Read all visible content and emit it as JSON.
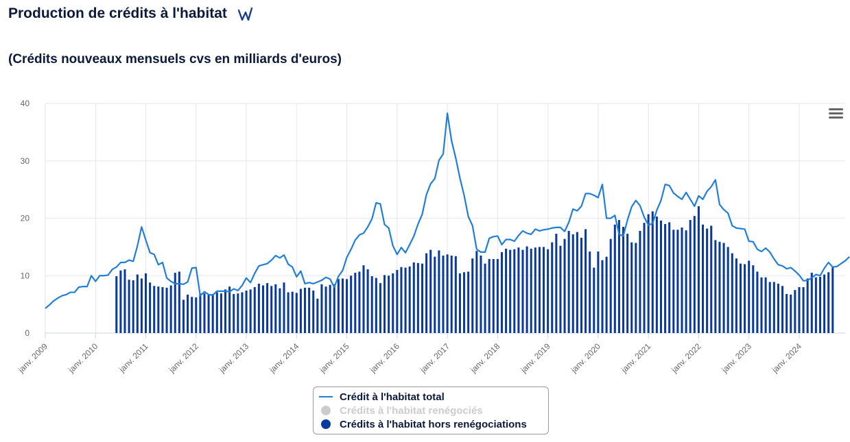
{
  "header": {
    "title": "Production de crédits à l'habitat",
    "subtitle": "(Crédits nouveaux mensuels cvs en milliards d'euros)"
  },
  "chart_data": {
    "type": "line+bar",
    "ylim": [
      0,
      40
    ],
    "yticks": [
      0,
      10,
      20,
      30,
      40
    ],
    "xticks": [
      "janv. 2009",
      "janv. 2010",
      "janv. 2011",
      "janv. 2012",
      "janv. 2013",
      "janv. 2014",
      "janv. 2015",
      "janv. 2016",
      "janv. 2017",
      "janv. 2018",
      "janv. 2019",
      "janv. 2020",
      "janv. 2021",
      "janv. 2022",
      "janv. 2023",
      "janv. 2024"
    ],
    "x_start": "2009-01",
    "x_end": "2024-11",
    "grid": true,
    "legend_position": "bottom-center",
    "colors": {
      "total": "#1f7ed8",
      "renegocies": "#cccccc",
      "hors": "#0a3a9a"
    },
    "series": [
      {
        "name": "Crédit à l'habitat total",
        "type": "line",
        "values": [
          4.3,
          4.9,
          5.6,
          6.1,
          6.5,
          6.7,
          7.1,
          7.1,
          8.0,
          8.1,
          8.1,
          10.0,
          9.0,
          10.0,
          10.0,
          10.1,
          11.1,
          11.5,
          12.3,
          12.3,
          12.7,
          12.5,
          15.2,
          18.5,
          16.2,
          14.0,
          13.7,
          11.9,
          12.3,
          9.6,
          9.0,
          8.6,
          8.6,
          8.5,
          8.9,
          11.3,
          11.4,
          6.5,
          7.2,
          6.7,
          6.6,
          7.3,
          7.3,
          7.3,
          7.2,
          7.7,
          7.4,
          8.3,
          9.6,
          8.8,
          10.4,
          11.7,
          11.9,
          12.1,
          12.7,
          13.5,
          13.1,
          13.6,
          12.0,
          11.5,
          9.8,
          10.8,
          8.6,
          8.8,
          8.6,
          8.9,
          9.2,
          9.7,
          9.4,
          8.0,
          9.9,
          10.9,
          13.2,
          14.6,
          16.2,
          17.1,
          17.4,
          18.5,
          19.9,
          22.7,
          22.5,
          18.9,
          18.3,
          15.2,
          13.7,
          14.9,
          14.0,
          15.4,
          16.9,
          19.0,
          20.7,
          24.1,
          26.0,
          26.9,
          30.1,
          31.2,
          38.3,
          33.5,
          30.5,
          27.0,
          24.0,
          20.3,
          18.7,
          14.6,
          14.1,
          14.1,
          16.5,
          16.8,
          16.9,
          15.4,
          16.3,
          16.3,
          16.0,
          17.0,
          17.8,
          17.4,
          17.2,
          18.1,
          17.8,
          18.0,
          18.1,
          18.3,
          18.4,
          18.4,
          17.7,
          19.3,
          21.6,
          21.3,
          22.1,
          24.3,
          24.3,
          24.0,
          23.6,
          25.9,
          20.0,
          20.0,
          20.5,
          17.2,
          16.9,
          19.7,
          22.0,
          23.1,
          22.2,
          20.2,
          18.8,
          19.1,
          21.4,
          23.1,
          25.9,
          25.7,
          24.4,
          23.8,
          23.3,
          24.5,
          23.3,
          22.1,
          23.9,
          23.3,
          24.7,
          25.5,
          26.7,
          22.4,
          21.5,
          20.9,
          18.7,
          18.3,
          18.2,
          18.1,
          16.0,
          15.9,
          14.6,
          14.2,
          14.8,
          14.1,
          12.9,
          11.9,
          11.7,
          11.2,
          11.4,
          10.8,
          10.1,
          9.1,
          9.2,
          9.6,
          10.2,
          10.0,
          11.3,
          12.3,
          11.5,
          11.6,
          12.1,
          12.6,
          13.3
        ]
      },
      {
        "name": "Crédits à l'habitat renégociés",
        "type": "column",
        "visible": false
      },
      {
        "name": "Crédits à l'habitat hors renégociations",
        "type": "column",
        "start": "2010-06",
        "values": [
          9.9,
          10.9,
          11.1,
          9.3,
          9.2,
          10.2,
          9.5,
          10.4,
          8.8,
          8.2,
          8.1,
          8.0,
          7.9,
          8.3,
          10.5,
          10.7,
          5.8,
          6.7,
          6.3,
          6.2,
          6.9,
          6.9,
          6.8,
          6.8,
          7.1,
          6.9,
          7.6,
          8.1,
          6.8,
          6.9,
          7.1,
          7.4,
          7.6,
          8.0,
          8.6,
          8.3,
          8.7,
          8.2,
          8.5,
          7.8,
          8.8,
          7.1,
          7.2,
          7.0,
          7.7,
          7.9,
          7.9,
          7.4,
          6.0,
          8.5,
          8.1,
          8.4,
          8.5,
          9.4,
          9.5,
          9.4,
          10.0,
          10.5,
          10.7,
          11.8,
          11.1,
          9.9,
          9.6,
          8.7,
          10.1,
          10.0,
          10.4,
          11.0,
          11.5,
          11.4,
          11.6,
          12.3,
          12.2,
          12.1,
          13.9,
          14.5,
          13.3,
          14.4,
          13.5,
          13.7,
          13.5,
          13.4,
          10.4,
          10.6,
          10.7,
          13.0,
          14.3,
          13.5,
          12.1,
          12.9,
          12.9,
          12.9,
          14.1,
          14.7,
          14.5,
          14.6,
          14.9,
          14.5,
          15.1,
          14.7,
          14.9,
          15.0,
          15.0,
          14.6,
          15.8,
          17.3,
          15.2,
          16.4,
          17.8,
          17.2,
          17.6,
          16.6,
          18.1,
          14.2,
          11.4,
          14.2,
          12.7,
          13.3,
          16.4,
          18.9,
          19.7,
          18.5,
          17.3,
          15.8,
          15.7,
          17.8,
          19.2,
          20.7,
          21.2,
          20.3,
          19.6,
          19.0,
          19.3,
          18.0,
          18.0,
          18.4,
          17.9,
          19.7,
          20.4,
          22.1,
          18.9,
          18.2,
          18.7,
          16.2,
          15.9,
          15.7,
          15.0,
          13.9,
          13.0,
          12.1,
          12.0,
          12.6,
          11.8,
          10.7,
          9.7,
          9.7,
          8.9,
          8.9,
          8.6,
          8.2,
          6.8,
          6.7,
          7.5,
          8.0,
          8.0,
          9.5,
          10.5,
          9.7,
          9.8,
          10.2,
          10.6,
          11.4
        ]
      }
    ]
  },
  "legend": {
    "items": [
      "Crédit à l'habitat total",
      "Crédits à l'habitat renégociés",
      "Crédits à l'habitat hors renégociations"
    ]
  },
  "icons": {
    "logo": "w-logo-icon",
    "menu": "hamburger-menu-icon"
  }
}
